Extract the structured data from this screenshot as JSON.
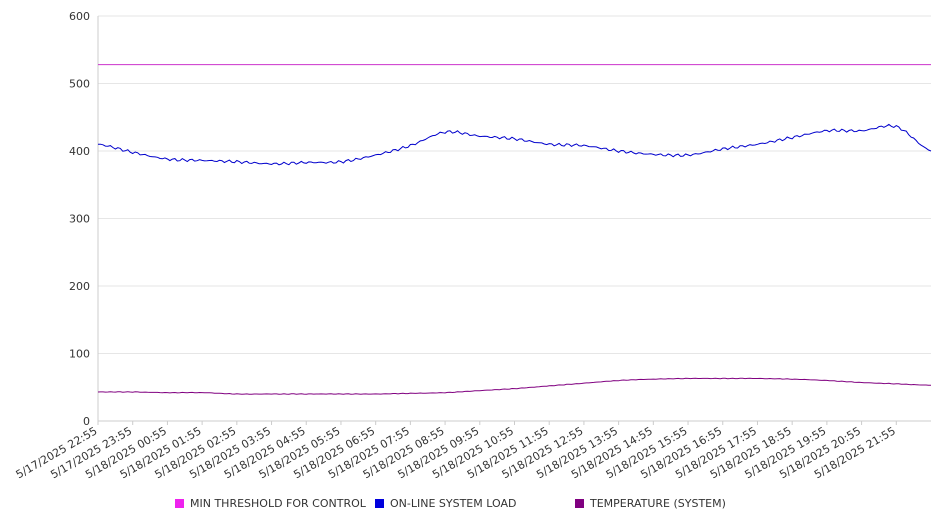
{
  "chart_data": {
    "type": "line",
    "title": "",
    "xlabel": "",
    "ylabel": "",
    "ylim": [
      0,
      600
    ],
    "yticks": [
      0,
      100,
      200,
      300,
      400,
      500,
      600
    ],
    "grid": "horizontal",
    "legend_position": "bottom",
    "x_tick_labels": [
      "5/17/2025 22:55",
      "5/17/2025 23:55",
      "5/18/2025 00:55",
      "5/18/2025 01:55",
      "5/18/2025 02:55",
      "5/18/2025 03:55",
      "5/18/2025 04:55",
      "5/18/2025 05:55",
      "5/18/2025 06:55",
      "5/18/2025 07:55",
      "5/18/2025 08:55",
      "5/18/2025 09:55",
      "5/18/2025 10:55",
      "5/18/2025 11:55",
      "5/18/2025 12:55",
      "5/18/2025 13:55",
      "5/18/2025 14:55",
      "5/18/2025 15:55",
      "5/18/2025 16:55",
      "5/18/2025 17:55",
      "5/18/2025 18:55",
      "5/18/2025 19:55",
      "5/18/2025 20:55",
      "5/18/2025 21:55"
    ],
    "series": [
      {
        "name": "MIN THRESHOLD FOR CONTROL",
        "color": "#cc33cc",
        "values": [
          528,
          528,
          528,
          528,
          528,
          528,
          528,
          528,
          528,
          528,
          528,
          528,
          528,
          528,
          528,
          528,
          528,
          528,
          528,
          528,
          528,
          528,
          528,
          528,
          528
        ]
      },
      {
        "name": "ON-LINE SYSTEM LOAD",
        "color": "#0000cc",
        "values": [
          410,
          398,
          388,
          386,
          384,
          381,
          383,
          384,
          394,
          408,
          428,
          422,
          418,
          410,
          408,
          400,
          395,
          394,
          403,
          410,
          420,
          430,
          430,
          436,
          400
        ]
      },
      {
        "name": "TEMPERATURE (SYSTEM)",
        "color": "#800080",
        "values": [
          43,
          43,
          42,
          42,
          40,
          40,
          40,
          40,
          40,
          41,
          42,
          45,
          48,
          52,
          56,
          60,
          62,
          63,
          63,
          63,
          62,
          60,
          57,
          55,
          53
        ]
      }
    ],
    "legend": [
      {
        "label": "MIN THRESHOLD FOR CONTROL",
        "color": "#ee22ee"
      },
      {
        "label": "ON-LINE SYSTEM LOAD",
        "color": "#0000dd"
      },
      {
        "label": "TEMPERATURE (SYSTEM)",
        "color": "#800080"
      }
    ]
  }
}
